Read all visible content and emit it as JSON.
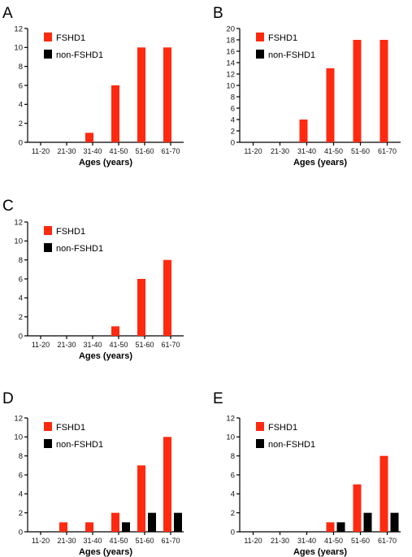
{
  "colors": {
    "FSHD1": "#ff2a10",
    "non-FSHD1": "#000000"
  },
  "chart_data": [
    {
      "panel": "A",
      "type": "bar",
      "categories": [
        "11-20",
        "21-30",
        "31-40",
        "41-50",
        "51-60",
        "61-70"
      ],
      "xlabel": "Ages (years)",
      "ylim": [
        0,
        12
      ],
      "yticks": [
        0,
        2,
        4,
        6,
        8,
        10,
        12
      ],
      "legend": "top-left",
      "series": [
        {
          "name": "FSHD1",
          "values": [
            0,
            0,
            1,
            6,
            10,
            10
          ]
        },
        {
          "name": "non-FSHD1",
          "values": [
            0,
            0,
            0,
            0,
            0,
            0
          ]
        }
      ]
    },
    {
      "panel": "B",
      "type": "bar",
      "categories": [
        "11-20",
        "21-30",
        "31-40",
        "41-50",
        "51-60",
        "61-70"
      ],
      "xlabel": "Ages (years)",
      "ylim": [
        0,
        20
      ],
      "yticks": [
        0,
        2,
        4,
        6,
        8,
        10,
        12,
        14,
        16,
        18,
        20
      ],
      "legend": "top-left",
      "series": [
        {
          "name": "FSHD1",
          "values": [
            0,
            0,
            4,
            13,
            18,
            18
          ]
        },
        {
          "name": "non-FSHD1",
          "values": [
            0,
            0,
            0,
            0,
            0,
            0
          ]
        }
      ]
    },
    {
      "panel": "C",
      "type": "bar",
      "categories": [
        "11-20",
        "21-30",
        "31-40",
        "41-50",
        "51-60",
        "61-70"
      ],
      "xlabel": "Ages (years)",
      "ylim": [
        0,
        12
      ],
      "yticks": [
        0,
        2,
        4,
        6,
        8,
        10,
        12
      ],
      "legend": "top-left",
      "series": [
        {
          "name": "FSHD1",
          "values": [
            0,
            0,
            0,
            1,
            6,
            8
          ]
        },
        {
          "name": "non-FSHD1",
          "values": [
            0,
            0,
            0,
            0,
            0,
            0
          ]
        }
      ]
    },
    {
      "panel": "D",
      "type": "bar",
      "categories": [
        "11-20",
        "21-30",
        "31-40",
        "41-50",
        "51-60",
        "61-70"
      ],
      "xlabel": "Ages (years)",
      "ylim": [
        0,
        12
      ],
      "yticks": [
        0,
        2,
        4,
        6,
        8,
        10,
        12
      ],
      "legend": "top-left",
      "series": [
        {
          "name": "FSHD1",
          "values": [
            0,
            1,
            1,
            2,
            7,
            10
          ]
        },
        {
          "name": "non-FSHD1",
          "values": [
            0,
            0,
            0,
            1,
            2,
            2
          ]
        }
      ]
    },
    {
      "panel": "E",
      "type": "bar",
      "categories": [
        "11-20",
        "21-30",
        "31-40",
        "41-50",
        "51-60",
        "61-70"
      ],
      "xlabel": "Ages (years)",
      "ylim": [
        0,
        12
      ],
      "yticks": [
        0,
        2,
        4,
        6,
        8,
        10,
        12
      ],
      "legend": "top-left",
      "series": [
        {
          "name": "FSHD1",
          "values": [
            0,
            0,
            0,
            1,
            5,
            8
          ]
        },
        {
          "name": "non-FSHD1",
          "values": [
            0,
            0,
            0,
            1,
            2,
            2
          ]
        }
      ]
    }
  ]
}
